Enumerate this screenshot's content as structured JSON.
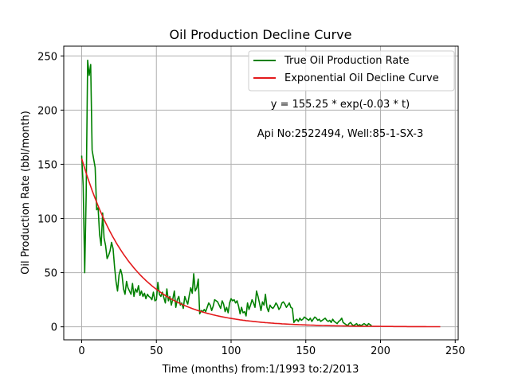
{
  "chart_data": {
    "type": "line",
    "title": "Oil Production Decline Curve",
    "xlabel": "Time (months) from:1/1993 to:2/2013",
    "ylabel": "Oil Production Rate (bbl/month)",
    "xlim": [
      -12,
      252
    ],
    "ylim": [
      -12,
      259
    ],
    "xticks": [
      0,
      50,
      100,
      150,
      200,
      250
    ],
    "yticks": [
      0,
      50,
      100,
      150,
      200,
      250
    ],
    "grid": true,
    "legend_position": "top-right",
    "annotations": [
      "y = 155.25 * exp(-0.03 * t)",
      "Api No:2522494, Well:85-1-SX-3"
    ],
    "series": [
      {
        "name": "True Oil Production Rate",
        "color": "#008000",
        "x": [
          0,
          1,
          2,
          3,
          4,
          5,
          6,
          7,
          8,
          9,
          10,
          11,
          12,
          13,
          14,
          15,
          16,
          17,
          18,
          19,
          20,
          21,
          22,
          23,
          24,
          25,
          26,
          27,
          28,
          29,
          30,
          31,
          32,
          33,
          34,
          35,
          36,
          37,
          38,
          39,
          40,
          41,
          42,
          43,
          44,
          45,
          46,
          47,
          48,
          49,
          50,
          51,
          52,
          53,
          54,
          55,
          56,
          57,
          58,
          59,
          60,
          61,
          62,
          63,
          64,
          65,
          66,
          67,
          68,
          69,
          70,
          71,
          72,
          73,
          74,
          75,
          76,
          77,
          78,
          79,
          80,
          81,
          82,
          83,
          84,
          85,
          86,
          87,
          88,
          89,
          90,
          91,
          92,
          93,
          94,
          95,
          96,
          97,
          98,
          99,
          100,
          101,
          102,
          103,
          104,
          105,
          106,
          107,
          108,
          109,
          110,
          111,
          112,
          113,
          114,
          115,
          116,
          117,
          118,
          119,
          120,
          121,
          122,
          123,
          124,
          125,
          126,
          127,
          128,
          129,
          130,
          131,
          132,
          133,
          134,
          135,
          136,
          137,
          138,
          139,
          140,
          141,
          142,
          143,
          144,
          145,
          146,
          147,
          148,
          149,
          150,
          151,
          152,
          153,
          154,
          155,
          156,
          157,
          158,
          159,
          160,
          161,
          162,
          163,
          164,
          165,
          166,
          167,
          168,
          169,
          170,
          171,
          172,
          173,
          174,
          175,
          176,
          177,
          178,
          179,
          180,
          181,
          182,
          183,
          184,
          185,
          186,
          187,
          188,
          189,
          190,
          191,
          192,
          193,
          194
        ],
        "y": [
          158,
          130,
          50,
          120,
          246,
          232,
          242,
          163,
          155,
          147,
          108,
          110,
          85,
          75,
          105,
          82,
          75,
          63,
          66,
          70,
          78,
          72,
          55,
          42,
          33,
          48,
          53,
          48,
          35,
          30,
          42,
          36,
          33,
          30,
          40,
          28,
          35,
          32,
          38,
          29,
          33,
          28,
          31,
          26,
          30,
          28,
          27,
          25,
          32,
          24,
          25,
          41,
          30,
          28,
          32,
          27,
          22,
          35,
          24,
          28,
          20,
          26,
          33,
          18,
          25,
          28,
          20,
          22,
          17,
          28,
          24,
          21,
          29,
          36,
          31,
          49,
          33,
          36,
          44,
          12,
          15,
          14,
          16,
          14,
          18,
          22,
          20,
          15,
          19,
          25,
          24,
          23,
          20,
          17,
          24,
          21,
          14,
          18,
          13,
          22,
          26,
          24,
          25,
          22,
          24,
          19,
          12,
          18,
          13,
          14,
          10,
          22,
          16,
          20,
          25,
          22,
          18,
          33,
          28,
          22,
          15,
          23,
          20,
          30,
          18,
          14,
          20,
          18,
          17,
          19,
          22,
          20,
          16,
          18,
          22,
          23,
          21,
          18,
          20,
          22,
          18,
          17,
          4,
          6,
          7,
          5,
          8,
          6,
          7,
          9,
          8,
          7,
          6,
          8,
          5,
          7,
          9,
          8,
          6,
          7,
          5,
          6,
          7,
          8,
          6,
          5,
          6,
          4,
          7,
          5,
          4,
          3,
          5,
          6,
          8,
          4,
          3,
          2,
          1,
          3,
          4,
          2,
          1,
          2,
          3,
          1,
          2,
          1,
          2,
          3,
          2,
          1,
          3,
          2,
          1
        ]
      },
      {
        "name": "Exponential Oil Decline Curve",
        "color": "#e31a1c",
        "model": {
          "a": 155.25,
          "b": 0.03,
          "t_min": 0,
          "t_max": 240
        }
      }
    ]
  }
}
